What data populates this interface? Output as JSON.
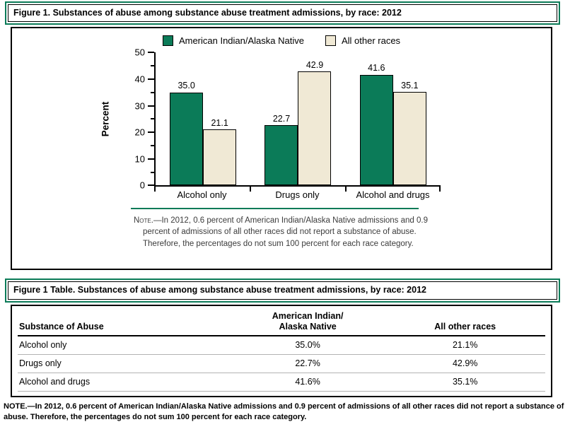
{
  "colors": {
    "accent_green": "#0b7b58",
    "bar_green": "#0b7b58",
    "bar_cream": "#f0e9d5",
    "bar_border": "#000000",
    "row_divider": "#b3b3b3",
    "chart_note_gray": "#3c3c3c"
  },
  "figure": {
    "title": "Figure 1. Substances of abuse among substance abuse treatment admissions, by race: 2012",
    "note_prefix": "Note.",
    "note_rest": "—In 2012, 0.6 percent of American Indian/Alaska Native admissions and 0.9 percent of admissions of all other races did not report a substance of abuse. Therefore, the percentages do not sum 100 percent for each race category."
  },
  "chart_data": {
    "type": "bar",
    "title": "Figure 1. Substances of abuse among substance abuse treatment admissions, by race: 2012",
    "categories": [
      "Alcohol only",
      "Drugs only",
      "Alcohol and drugs"
    ],
    "series": [
      {
        "name": "American Indian/Alaska Native",
        "color": "#0b7b58",
        "values": [
          35.0,
          22.7,
          41.6
        ]
      },
      {
        "name": "All other races",
        "color": "#f0e9d5",
        "values": [
          21.1,
          42.9,
          35.1
        ]
      }
    ],
    "xlabel": "",
    "ylabel": "Percent",
    "ylim": [
      0,
      50
    ],
    "yticks": [
      0,
      10,
      20,
      30,
      40,
      50
    ],
    "yticks_minor": [
      5,
      15,
      25,
      35,
      45
    ],
    "grid": false,
    "legend_position": "top",
    "value_label_decimals": 1
  },
  "table": {
    "title": "Figure 1 Table. Substances of abuse among substance abuse treatment admissions, by race: 2012",
    "columns": [
      "Substance of Abuse",
      "American Indian/\nAlaska Native",
      "All other races"
    ],
    "rows": [
      [
        "Alcohol only",
        "35.0%",
        "21.1%"
      ],
      [
        "Drugs only",
        "22.7%",
        "42.9%"
      ],
      [
        "Alcohol and drugs",
        "41.6%",
        "35.1%"
      ]
    ],
    "note": "NOTE.—In 2012, 0.6 percent of American Indian/Alaska Native admissions and 0.9 percent of admissions of all other races did not report a substance of abuse. Therefore, the percentages do not sum 100 percent for each race category."
  }
}
